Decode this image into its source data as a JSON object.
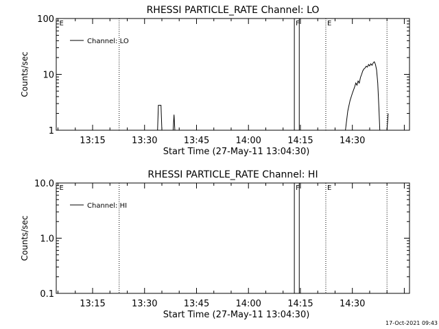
{
  "footer": {
    "timestamp": "17-Oct-2021 09:43"
  },
  "chart_data": [
    {
      "type": "line",
      "title": "RHESSI PARTICLE_RATE Channel: LO",
      "xlabel": "Start Time (27-May-11 13:04:30)",
      "ylabel": "Counts/sec",
      "yscale": "log",
      "ylim": [
        1,
        100
      ],
      "xlim": [
        "13:04:30",
        "14:46:30"
      ],
      "x_ticks": [
        "13:15",
        "13:30",
        "13:45",
        "14:00",
        "14:15",
        "14:30"
      ],
      "y_ticks": [
        "1",
        "10",
        "100"
      ],
      "legend": {
        "label": "Channel: LO",
        "position": "top-left"
      },
      "markers": [
        {
          "label": "E",
          "time": "13:05:00",
          "style": "none"
        },
        {
          "label": "",
          "time": "13:22:40",
          "style": "dotted"
        },
        {
          "label": "F",
          "time": "14:13:15",
          "style": "solid"
        },
        {
          "label": "",
          "time": "14:14:40",
          "style": "solid"
        },
        {
          "label": "E",
          "time": "14:22:20",
          "style": "dotted"
        },
        {
          "label": "",
          "time": "14:40:00",
          "style": "dotted"
        }
      ],
      "series": [
        {
          "name": "Channel: LO",
          "segments": [
            [
              [
                "13:33:45",
                1.0
              ],
              [
                "13:34:00",
                2.8
              ],
              [
                "13:34:45",
                2.8
              ],
              [
                "13:35:00",
                1.0
              ]
            ],
            [
              [
                "13:38:15",
                1.0
              ],
              [
                "13:38:30",
                1.9
              ],
              [
                "13:38:45",
                1.0
              ]
            ],
            [
              [
                "14:28:00",
                1.0
              ],
              [
                "14:28:40",
                2.2
              ],
              [
                "14:29:20",
                3.4
              ],
              [
                "14:30:00",
                4.6
              ],
              [
                "14:30:40",
                6.0
              ],
              [
                "14:31:00",
                7.0
              ],
              [
                "14:31:20",
                6.4
              ],
              [
                "14:31:40",
                7.6
              ],
              [
                "14:32:00",
                7.0
              ],
              [
                "14:32:20",
                8.8
              ],
              [
                "14:32:40",
                10.0
              ],
              [
                "14:33:00",
                11.5
              ],
              [
                "14:33:20",
                12.5
              ],
              [
                "14:33:40",
                13.0
              ],
              [
                "14:34:00",
                14.0
              ],
              [
                "14:34:20",
                13.5
              ],
              [
                "14:34:40",
                15.0
              ],
              [
                "14:35:00",
                14.2
              ],
              [
                "14:35:20",
                15.5
              ],
              [
                "14:35:40",
                14.5
              ],
              [
                "14:36:00",
                16.0
              ],
              [
                "14:36:20",
                16.8
              ],
              [
                "14:36:40",
                15.0
              ],
              [
                "14:37:00",
                12.0
              ],
              [
                "14:37:20",
                7.0
              ],
              [
                "14:37:40",
                2.5
              ],
              [
                "14:37:55",
                1.0
              ]
            ],
            [
              [
                "14:40:00",
                1.0
              ],
              [
                "14:40:20",
                2.0
              ]
            ]
          ]
        }
      ]
    },
    {
      "type": "line",
      "title": "RHESSI PARTICLE_RATE Channel: HI",
      "xlabel": "Start Time (27-May-11 13:04:30)",
      "ylabel": "Counts/sec",
      "yscale": "log",
      "ylim": [
        0.1,
        10
      ],
      "xlim": [
        "13:04:30",
        "14:46:30"
      ],
      "x_ticks": [
        "13:15",
        "13:30",
        "13:45",
        "14:00",
        "14:15",
        "14:30"
      ],
      "y_ticks": [
        "0.1",
        "1.0",
        "10.0"
      ],
      "legend": {
        "label": "Channel: HI",
        "position": "top-left"
      },
      "markers": [
        {
          "label": "E",
          "time": "13:05:00",
          "style": "none"
        },
        {
          "label": "",
          "time": "13:22:40",
          "style": "dotted"
        },
        {
          "label": "F",
          "time": "14:13:15",
          "style": "solid"
        },
        {
          "label": "",
          "time": "14:14:40",
          "style": "solid"
        },
        {
          "label": "E",
          "time": "14:22:20",
          "style": "dotted"
        },
        {
          "label": "",
          "time": "14:40:00",
          "style": "dotted"
        }
      ],
      "series": [
        {
          "name": "Channel: HI",
          "segments": []
        }
      ]
    }
  ]
}
